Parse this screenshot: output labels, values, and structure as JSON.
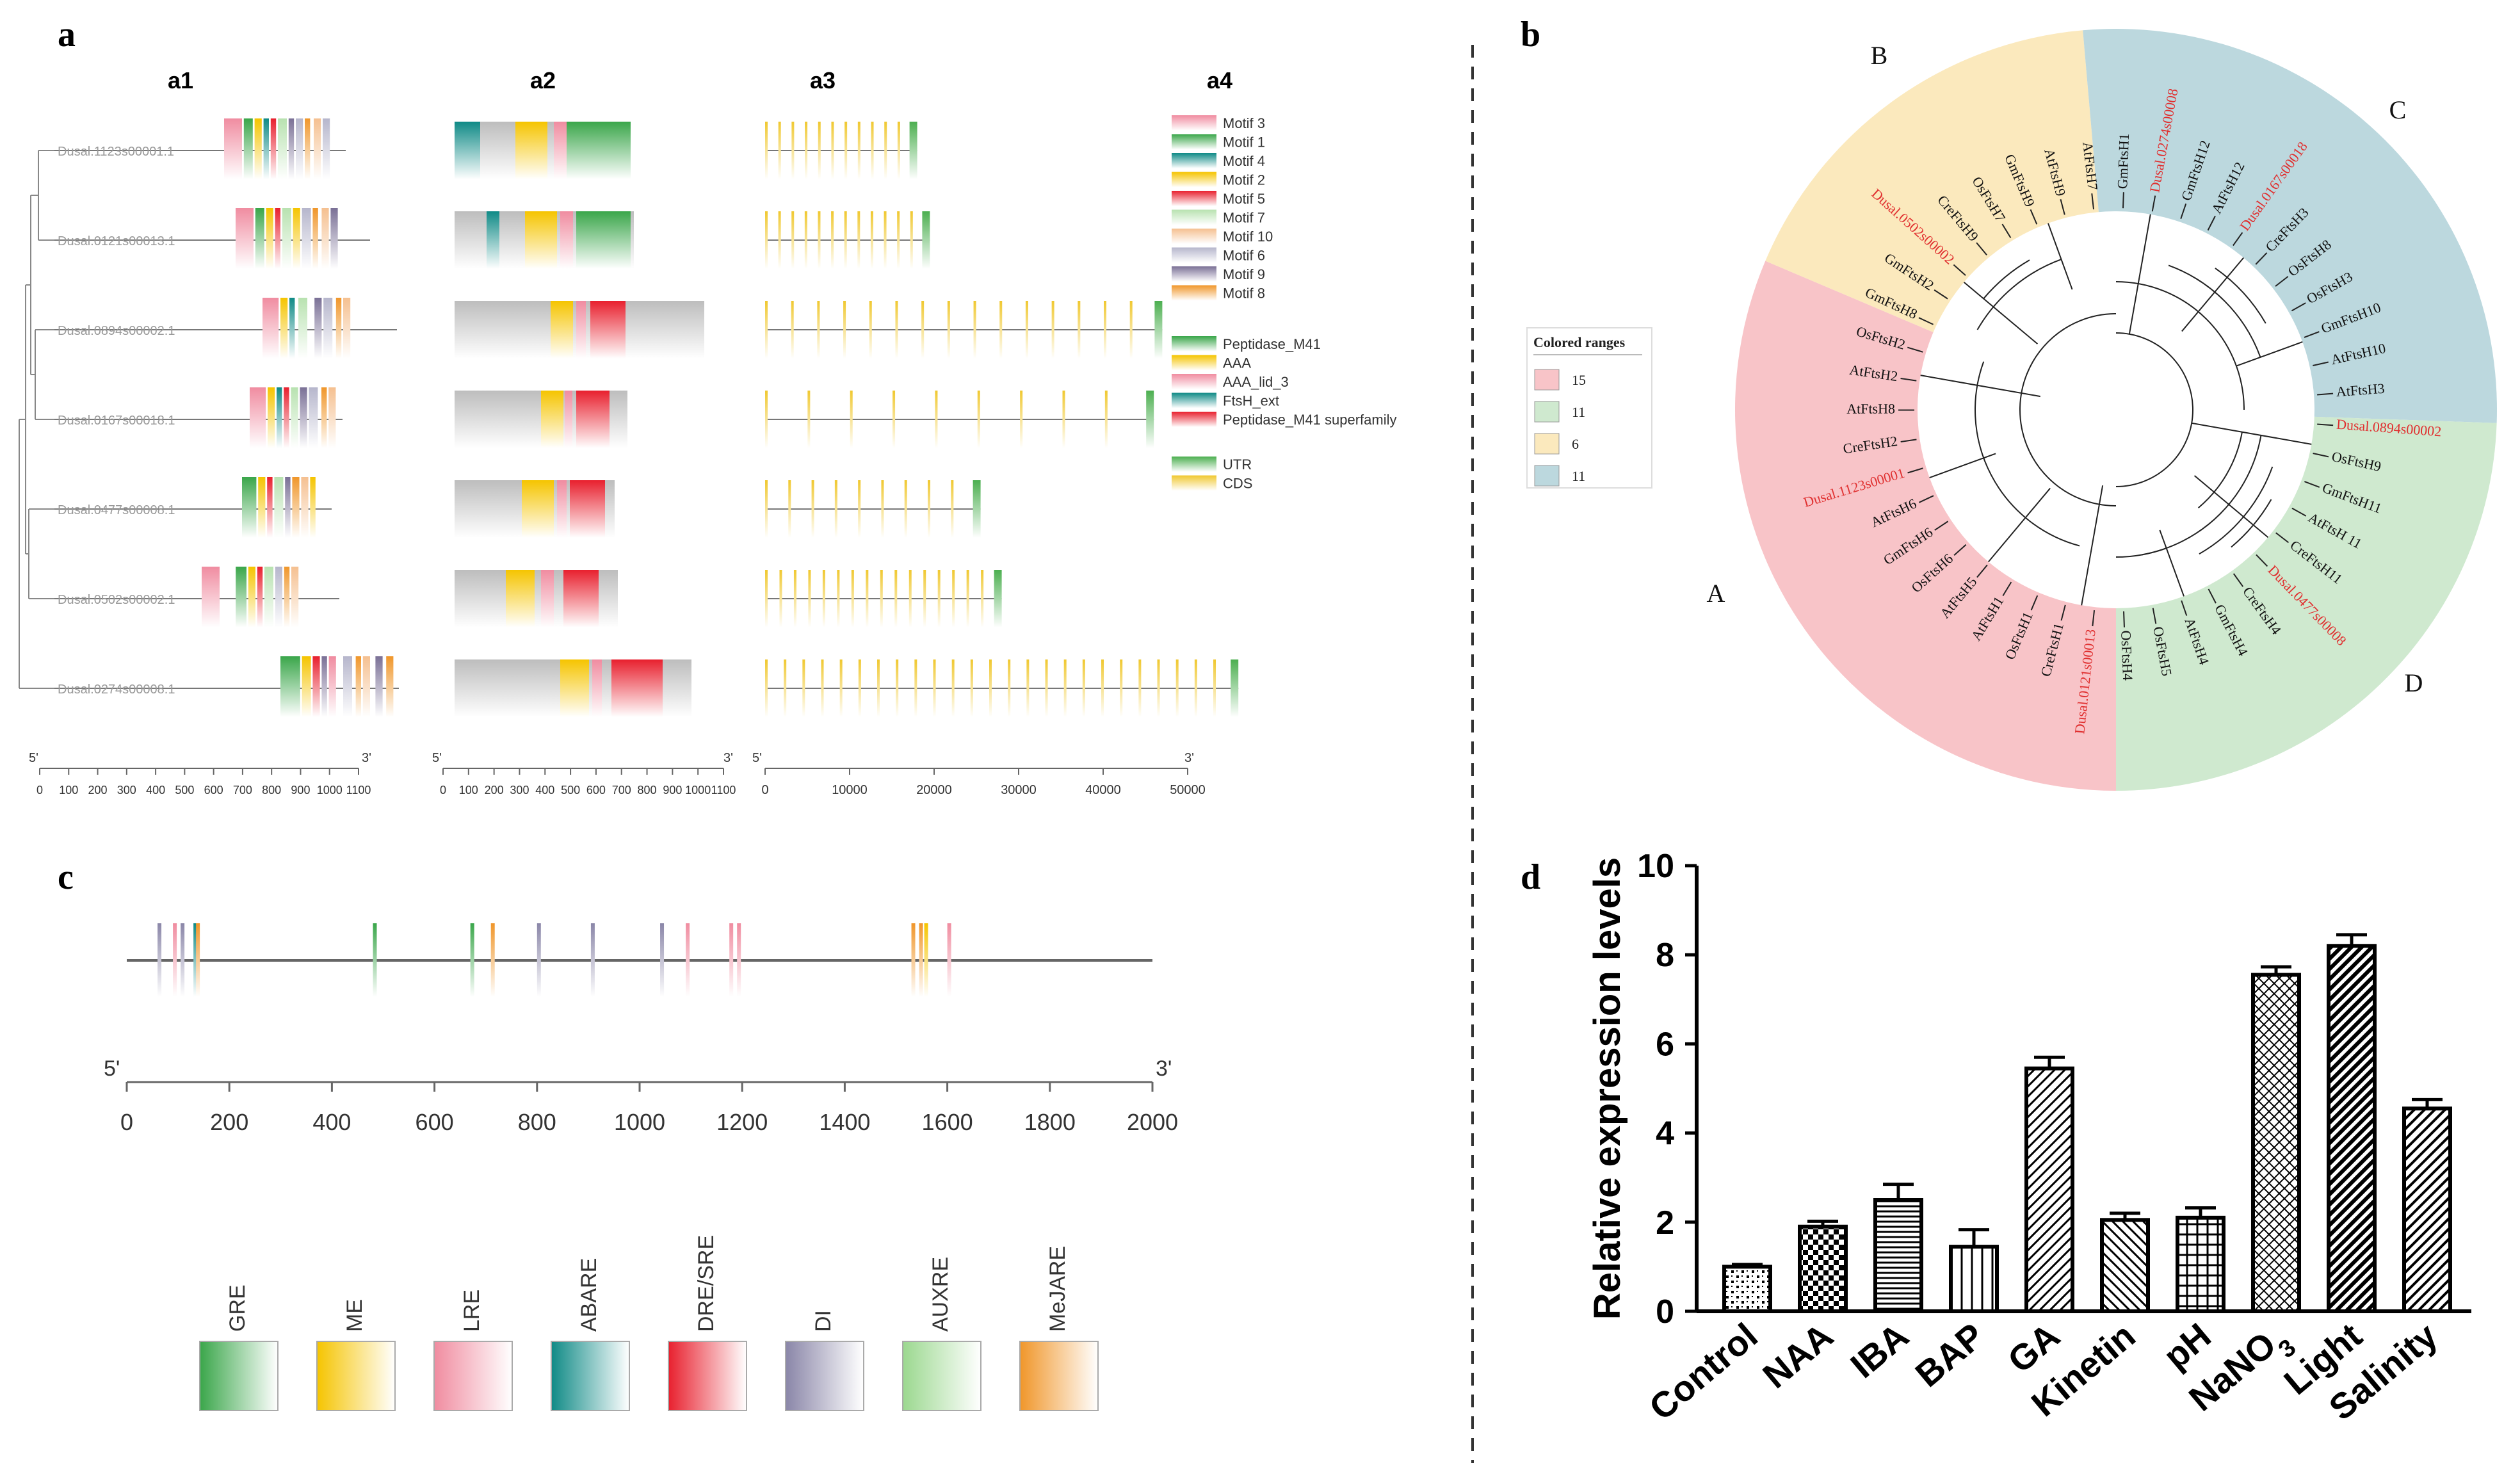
{
  "panels": {
    "a": "a",
    "b": "b",
    "c": "c",
    "d": "d",
    "a1": "a1",
    "a2": "a2",
    "a3": "a3",
    "a4": "a4"
  },
  "colors": {
    "motif3": "#f08ca0",
    "motif1": "#3aa64a",
    "motif4": "#0f8a86",
    "motif2": "#f5c400",
    "motif5": "#e8202e",
    "motif7": "#b8e2b0",
    "motif10": "#f5c090",
    "motif6": "#b6b6cc",
    "motif9": "#7a7096",
    "motif8": "#f0962a",
    "utr": "#4caf50",
    "cds": "#f0c830",
    "cladeA": "#f8c4c8",
    "cladeB": "#fbe9bd",
    "cladeC": "#bcd8de",
    "cladeD": "#cfe9cf",
    "red_label": "#e03030"
  },
  "a1": {
    "genes": [
      "Dusal.1123s00001.1",
      "Dusal.0121s00013.1",
      "Dusal.0894s00002.1",
      "Dusal.0167s00018.1",
      "Dusal.0477s00008.1",
      "Dusal.0502s00002.1",
      "Dusal.0274s00008.1"
    ],
    "axis": {
      "five": "5'",
      "three": "3'",
      "ticks": [
        "0",
        "100",
        "200",
        "300",
        "400",
        "500",
        "600",
        "700",
        "800",
        "900",
        "1000",
        "1100"
      ]
    }
  },
  "a2": {
    "axis": {
      "five": "5'",
      "three": "3'",
      "ticks": [
        "0",
        "100",
        "200",
        "300",
        "400",
        "500",
        "600",
        "700",
        "800",
        "900",
        "1000",
        "1100"
      ]
    }
  },
  "a3": {
    "axis": {
      "five": "5'",
      "three": "3'",
      "ticks": [
        "0",
        "10000",
        "20000",
        "30000",
        "40000",
        "50000"
      ]
    }
  },
  "a4": {
    "motif_legend": [
      {
        "label": "Motif 3",
        "color": "#f08ca0"
      },
      {
        "label": "Motif 1",
        "color": "#3aa64a"
      },
      {
        "label": "Motif 4",
        "color": "#0f8a86"
      },
      {
        "label": "Motif 2",
        "color": "#f5c400"
      },
      {
        "label": "Motif 5",
        "color": "#e8202e"
      },
      {
        "label": "Motif 7",
        "color": "#b8e2b0"
      },
      {
        "label": "Motif 10",
        "color": "#f5c090"
      },
      {
        "label": "Motif 6",
        "color": "#b6b6cc"
      },
      {
        "label": "Motif 9",
        "color": "#7a7096"
      },
      {
        "label": "Motif 8",
        "color": "#f0962a"
      }
    ],
    "domain_legend": [
      {
        "label": "Peptidase_M41",
        "color": "#3aa64a"
      },
      {
        "label": "AAA",
        "color": "#f5c400"
      },
      {
        "label": "AAA_lid_3",
        "color": "#f08ca0"
      },
      {
        "label": "FtsH_ext",
        "color": "#0f8a86"
      },
      {
        "label": "Peptidase_M41 superfamily",
        "color": "#e8202e"
      }
    ],
    "structure_legend": [
      {
        "label": "UTR",
        "color": "#4caf50"
      },
      {
        "label": "CDS",
        "color": "#f0c830"
      }
    ]
  },
  "b": {
    "legend_title": "Colored ranges",
    "legend": [
      {
        "value": "15",
        "color": "#f8c4c8"
      },
      {
        "value": "11",
        "color": "#cfe9cf"
      },
      {
        "value": "6",
        "color": "#fbe9bd"
      },
      {
        "value": "11",
        "color": "#bcd8de"
      }
    ],
    "clade_labels": [
      "A",
      "B",
      "C",
      "D"
    ],
    "leaves": [
      {
        "label": "GmFtsH1",
        "red": false
      },
      {
        "label": "Dusal.0274s00008",
        "red": true
      },
      {
        "label": "GmFtsH12",
        "red": false
      },
      {
        "label": "AtFtsH12",
        "red": false
      },
      {
        "label": "Dusal.0167s00018",
        "red": true
      },
      {
        "label": "CreFtsH3",
        "red": false
      },
      {
        "label": "OsFtsH8",
        "red": false
      },
      {
        "label": "OsFtsH3",
        "red": false
      },
      {
        "label": "GmFtsH10",
        "red": false
      },
      {
        "label": "AtFtsH10",
        "red": false
      },
      {
        "label": "AtFtsH3",
        "red": false
      },
      {
        "label": "Dusal.0894s00002",
        "red": true
      },
      {
        "label": "OsFtsH9",
        "red": false
      },
      {
        "label": "GmFtsH11",
        "red": false
      },
      {
        "label": "AtFtsH 11",
        "red": false
      },
      {
        "label": "CreFtsH11",
        "red": false
      },
      {
        "label": "Dusal.0477s00008",
        "red": true
      },
      {
        "label": "CreFtsH4",
        "red": false
      },
      {
        "label": "GmFtsH4",
        "red": false
      },
      {
        "label": "AtFtsH4",
        "red": false
      },
      {
        "label": "OsFtsH5",
        "red": false
      },
      {
        "label": "OsFtsH4",
        "red": false
      },
      {
        "label": "Dusal.0121s00013",
        "red": true
      },
      {
        "label": "CreFtsH1",
        "red": false
      },
      {
        "label": "OsFtsH1",
        "red": false
      },
      {
        "label": "AtFtsH1",
        "red": false
      },
      {
        "label": "AtFtsH5",
        "red": false
      },
      {
        "label": "OsFtsH6",
        "red": false
      },
      {
        "label": "GmFtsH6",
        "red": false
      },
      {
        "label": "AtFtsH6",
        "red": false
      },
      {
        "label": "Dusal.1123s00001",
        "red": true
      },
      {
        "label": "CreFtsH2",
        "red": false
      },
      {
        "label": "AtFtsH8",
        "red": false
      },
      {
        "label": "AtFtsH2",
        "red": false
      },
      {
        "label": "OsFtsH2",
        "red": false
      },
      {
        "label": "GmFtsH8",
        "red": false
      },
      {
        "label": "GmFtsH2",
        "red": false
      },
      {
        "label": "Dusal.0502s00002",
        "red": true
      },
      {
        "label": "CreFtsH9",
        "red": false
      },
      {
        "label": "OsFtsH7",
        "red": false
      },
      {
        "label": "GmFtsH9",
        "red": false
      },
      {
        "label": "AtFtsH9",
        "red": false
      },
      {
        "label": "AtFtsH7",
        "red": false
      }
    ]
  },
  "c": {
    "axis": {
      "five": "5'",
      "three": "3'",
      "ticks": [
        "0",
        "200",
        "400",
        "600",
        "800",
        "1000",
        "1200",
        "1400",
        "1600",
        "1800",
        "2000"
      ]
    },
    "legend": [
      {
        "label": "GRE",
        "color": "#3aa64a"
      },
      {
        "label": "ME",
        "color": "#f5c400"
      },
      {
        "label": "LRE",
        "color": "#f08ca0"
      },
      {
        "label": "ABARE",
        "color": "#0f8a86"
      },
      {
        "label": "DRE/SRE",
        "color": "#e8202e"
      },
      {
        "label": "DI",
        "color": "#8a86a8"
      },
      {
        "label": "AUXRE",
        "color": "#9bd88f"
      },
      {
        "label": "MeJARE",
        "color": "#f0962a"
      }
    ]
  },
  "chart_data": {
    "type": "bar",
    "title": "",
    "xlabel": "",
    "ylabel": "Relative expression levels",
    "categories": [
      "Control",
      "NAA",
      "IBA",
      "BAP",
      "GA",
      "Kinetin",
      "pH",
      "NaNO3",
      "Light",
      "Salinity"
    ],
    "category_labels": [
      "Control",
      "NAA",
      "IBA",
      "BAP",
      "GA",
      "Kinetin",
      "pH",
      "NaNO",
      "Light",
      "Salinity"
    ],
    "values": [
      1.0,
      1.9,
      2.5,
      1.45,
      5.45,
      2.05,
      2.1,
      7.55,
      8.2,
      4.55
    ],
    "errors": [
      0.05,
      0.12,
      0.35,
      0.38,
      0.25,
      0.15,
      0.22,
      0.18,
      0.25,
      0.2
    ],
    "ylim": [
      0,
      10
    ],
    "yticks": [
      "0",
      "2",
      "4",
      "6",
      "8",
      "10"
    ],
    "subscript_note": "3",
    "grid": false
  }
}
